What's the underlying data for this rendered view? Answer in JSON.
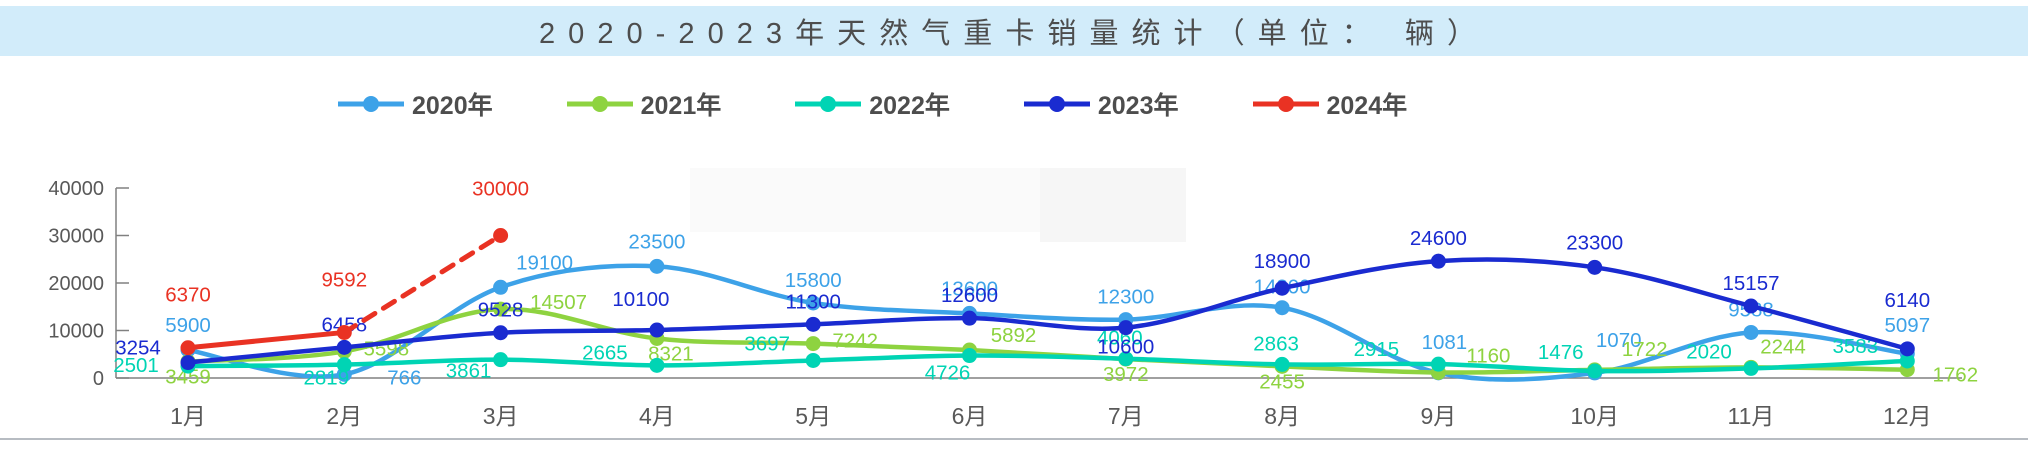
{
  "title_bar": {
    "text": "2020-2023年天然气重卡销量统计（单位： 辆）"
  },
  "colors": {
    "title_bg": "#d2ecfa",
    "title_text": "#4d4d4d",
    "axis": "#808080",
    "axis_text": "#595959"
  },
  "chart_data": {
    "type": "line",
    "title": "2020-2023年天然气重卡销量统计（单位：辆）",
    "xlabel": "",
    "ylabel": "",
    "categories": [
      "1月",
      "2月",
      "3月",
      "4月",
      "5月",
      "6月",
      "7月",
      "8月",
      "9月",
      "10月",
      "11月",
      "12月"
    ],
    "ylim": [
      0,
      40000
    ],
    "y_ticks": [
      0,
      10000,
      20000,
      30000,
      40000
    ],
    "grid": false,
    "legend_position": "top",
    "series": [
      {
        "name": "2020年",
        "color": "#3da2e8",
        "style": "solid",
        "values": [
          5900,
          766,
          19100,
          23500,
          15800,
          13600,
          12300,
          14800,
          1081,
          1070,
          9588,
          5097
        ]
      },
      {
        "name": "2021年",
        "color": "#8ed340",
        "style": "solid",
        "values": [
          3459,
          5598,
          14507,
          8321,
          7242,
          5892,
          3972,
          2455,
          1160,
          1722,
          2244,
          1762
        ]
      },
      {
        "name": "2022年",
        "color": "#00d4b4",
        "style": "solid",
        "values": [
          2501,
          2819,
          3861,
          2665,
          3697,
          4726,
          4060,
          2863,
          2915,
          1476,
          2020,
          3583
        ]
      },
      {
        "name": "2023年",
        "color": "#1a2bd0",
        "style": "solid",
        "values": [
          3254,
          6458,
          9528,
          10100,
          11300,
          12600,
          10600,
          18900,
          24600,
          23300,
          15157,
          6140
        ]
      },
      {
        "name": "2024年",
        "color": "#e93223",
        "style": "dashed_after_point_1",
        "values": [
          6370,
          9592,
          30000
        ]
      }
    ]
  }
}
